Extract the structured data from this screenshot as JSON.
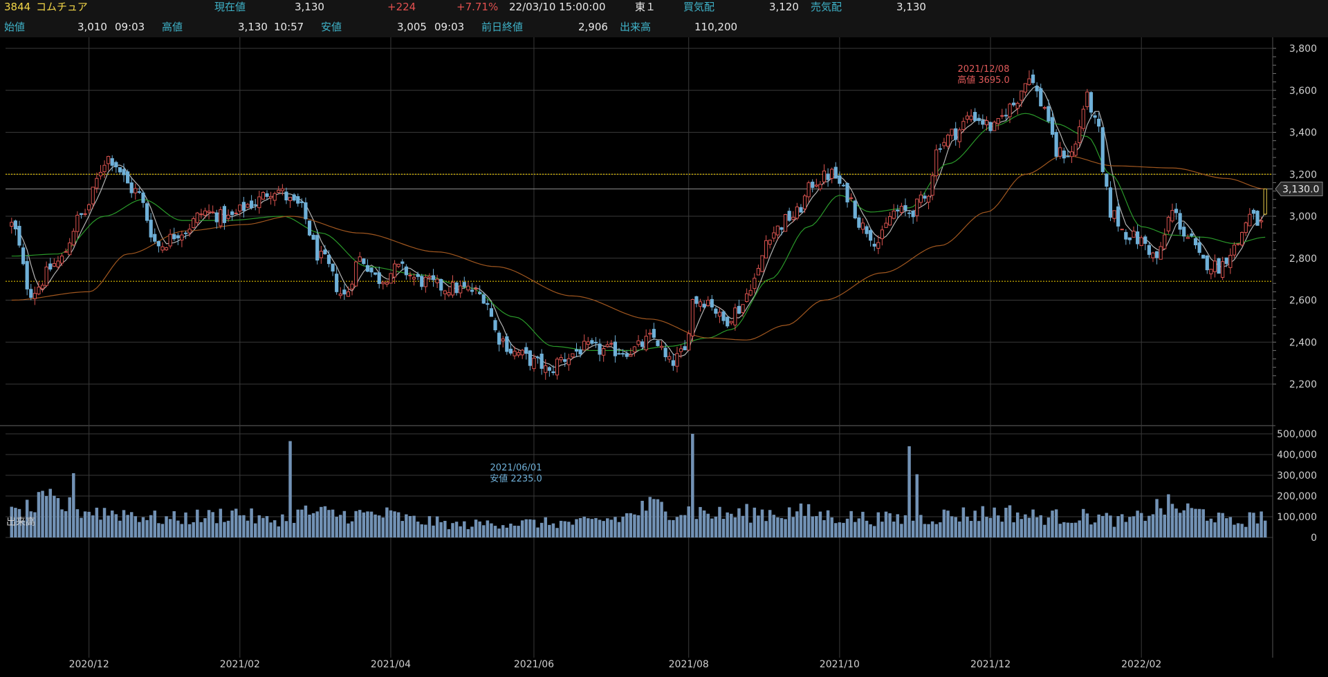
{
  "header": {
    "code": "3844",
    "name": "コムチュア",
    "current_label": "現在値",
    "current_value": "3,130",
    "change": "+224",
    "change_pct": "+7.71%",
    "datetime": "22/03/10 15:00:00",
    "market": "東１",
    "bid_label": "買気配",
    "bid_value": "3,120",
    "ask_label": "売気配",
    "ask_value": "3,130",
    "open_label": "始値",
    "open_value": "3,010",
    "open_time": "09:03",
    "high_label": "高値",
    "high_value": "3,130",
    "high_time": "10:57",
    "low_label": "安値",
    "low_value": "3,005",
    "low_time": "09:03",
    "prev_label": "前日終値",
    "prev_value": "2,906",
    "volume_label": "出来高",
    "volume_value": "110,200"
  },
  "chart_data": {
    "type": "candlestick",
    "price_axis": {
      "range": [
        2160,
        3860
      ],
      "ticks": [
        2200,
        2400,
        2600,
        2800,
        3000,
        3200,
        3400,
        3600,
        3800
      ],
      "tick_labels": [
        "2,200",
        "2,400",
        "2,600",
        "2,800",
        "3,000",
        "3,200",
        "3,400",
        "3,600",
        "3,800"
      ]
    },
    "volume_axis": {
      "label": "出来高",
      "range": [
        0,
        500000
      ],
      "ticks": [
        0,
        100000,
        200000,
        300000,
        400000,
        500000
      ],
      "tick_labels": [
        "0",
        "100,000",
        "200,000",
        "300,000",
        "400,000",
        "500,000"
      ]
    },
    "date_labels": [
      "2020/12",
      "2021/02",
      "2021/04",
      "2021/06",
      "2021/08",
      "2021/10",
      "2021/12",
      "2022/02"
    ],
    "date_label_bars": [
      20,
      59,
      98,
      135,
      175,
      214,
      253,
      292
    ],
    "bars": 325,
    "horizontal_lines": [
      3200,
      2690
    ],
    "current_price_tag": "3,130.0",
    "current_price": 3130,
    "annotations": {
      "high": {
        "date": "2021/12/08",
        "text": "高値 3695.0",
        "value": 3695,
        "bar": 263
      },
      "low": {
        "date": "2021/06/01",
        "text": "安値 2235.0",
        "value": 2235,
        "bar": 139
      }
    },
    "price_anchors": [
      [
        0,
        2960
      ],
      [
        5,
        2640
      ],
      [
        12,
        2780
      ],
      [
        18,
        3000
      ],
      [
        25,
        3280
      ],
      [
        32,
        3120
      ],
      [
        38,
        2860
      ],
      [
        44,
        2930
      ],
      [
        50,
        3020
      ],
      [
        56,
        2990
      ],
      [
        62,
        3060
      ],
      [
        68,
        3130
      ],
      [
        74,
        3050
      ],
      [
        80,
        2800
      ],
      [
        86,
        2620
      ],
      [
        90,
        2800
      ],
      [
        95,
        2700
      ],
      [
        100,
        2750
      ],
      [
        106,
        2690
      ],
      [
        112,
        2660
      ],
      [
        118,
        2650
      ],
      [
        122,
        2620
      ],
      [
        126,
        2420
      ],
      [
        130,
        2350
      ],
      [
        136,
        2300
      ],
      [
        139,
        2260
      ],
      [
        142,
        2320
      ],
      [
        148,
        2370
      ],
      [
        154,
        2360
      ],
      [
        160,
        2360
      ],
      [
        166,
        2420
      ],
      [
        170,
        2300
      ],
      [
        174,
        2350
      ],
      [
        176,
        2600
      ],
      [
        180,
        2600
      ],
      [
        184,
        2500
      ],
      [
        188,
        2560
      ],
      [
        192,
        2700
      ],
      [
        196,
        2920
      ],
      [
        202,
        3000
      ],
      [
        208,
        3170
      ],
      [
        212,
        3200
      ],
      [
        216,
        3100
      ],
      [
        220,
        2950
      ],
      [
        224,
        2880
      ],
      [
        228,
        3020
      ],
      [
        232,
        3020
      ],
      [
        236,
        3080
      ],
      [
        240,
        3350
      ],
      [
        244,
        3400
      ],
      [
        248,
        3480
      ],
      [
        254,
        3420
      ],
      [
        258,
        3520
      ],
      [
        263,
        3650
      ],
      [
        267,
        3520
      ],
      [
        270,
        3300
      ],
      [
        274,
        3300
      ],
      [
        278,
        3560
      ],
      [
        281,
        3400
      ],
      [
        282,
        3200
      ],
      [
        284,
        3020
      ],
      [
        288,
        2920
      ],
      [
        292,
        2880
      ],
      [
        296,
        2800
      ],
      [
        300,
        3020
      ],
      [
        304,
        2900
      ],
      [
        308,
        2780
      ],
      [
        312,
        2760
      ],
      [
        316,
        2850
      ],
      [
        320,
        3000
      ],
      [
        323,
        2960
      ],
      [
        324,
        3130
      ]
    ],
    "ma_short_anchors": [
      [
        0,
        2810
      ],
      [
        12,
        2820
      ],
      [
        24,
        3000
      ],
      [
        34,
        3080
      ],
      [
        44,
        2980
      ],
      [
        56,
        2980
      ],
      [
        70,
        3000
      ],
      [
        80,
        2920
      ],
      [
        92,
        2760
      ],
      [
        106,
        2720
      ],
      [
        118,
        2660
      ],
      [
        130,
        2520
      ],
      [
        140,
        2380
      ],
      [
        150,
        2360
      ],
      [
        160,
        2360
      ],
      [
        170,
        2380
      ],
      [
        180,
        2420
      ],
      [
        186,
        2460
      ],
      [
        196,
        2700
      ],
      [
        206,
        2950
      ],
      [
        214,
        3100
      ],
      [
        222,
        3020
      ],
      [
        232,
        3040
      ],
      [
        242,
        3250
      ],
      [
        254,
        3430
      ],
      [
        262,
        3490
      ],
      [
        270,
        3440
      ],
      [
        278,
        3380
      ],
      [
        284,
        3200
      ],
      [
        292,
        2950
      ],
      [
        300,
        2910
      ],
      [
        308,
        2900
      ],
      [
        316,
        2870
      ],
      [
        324,
        2900
      ]
    ],
    "ma_long_anchors": [
      [
        0,
        2600
      ],
      [
        20,
        2640
      ],
      [
        30,
        2820
      ],
      [
        45,
        2930
      ],
      [
        60,
        2960
      ],
      [
        72,
        3000
      ],
      [
        90,
        2920
      ],
      [
        110,
        2830
      ],
      [
        125,
        2760
      ],
      [
        145,
        2620
      ],
      [
        165,
        2510
      ],
      [
        180,
        2420
      ],
      [
        190,
        2410
      ],
      [
        200,
        2480
      ],
      [
        210,
        2600
      ],
      [
        225,
        2730
      ],
      [
        240,
        2860
      ],
      [
        252,
        3020
      ],
      [
        262,
        3200
      ],
      [
        272,
        3290
      ],
      [
        285,
        3240
      ],
      [
        300,
        3230
      ],
      [
        314,
        3180
      ],
      [
        324,
        3130
      ]
    ],
    "volume_anchors": [
      [
        0,
        110000
      ],
      [
        10,
        170000
      ],
      [
        18,
        130000
      ],
      [
        28,
        120000
      ],
      [
        40,
        90000
      ],
      [
        50,
        100000
      ],
      [
        58,
        120000
      ],
      [
        66,
        80000
      ],
      [
        76,
        120000
      ],
      [
        86,
        110000
      ],
      [
        96,
        110000
      ],
      [
        106,
        80000
      ],
      [
        116,
        60000
      ],
      [
        126,
        70000
      ],
      [
        136,
        70000
      ],
      [
        146,
        70000
      ],
      [
        156,
        90000
      ],
      [
        166,
        150000
      ],
      [
        174,
        130000
      ],
      [
        184,
        110000
      ],
      [
        194,
        120000
      ],
      [
        204,
        120000
      ],
      [
        214,
        100000
      ],
      [
        226,
        90000
      ],
      [
        234,
        90000
      ],
      [
        244,
        110000
      ],
      [
        256,
        120000
      ],
      [
        266,
        100000
      ],
      [
        278,
        100000
      ],
      [
        288,
        80000
      ],
      [
        298,
        150000
      ],
      [
        308,
        120000
      ],
      [
        316,
        70000
      ],
      [
        324,
        110000
      ]
    ],
    "volume_spikes": [
      [
        16,
        310000
      ],
      [
        72,
        465000
      ],
      [
        176,
        500000
      ],
      [
        232,
        440000
      ],
      [
        234,
        305000
      ]
    ],
    "colors": {
      "up": "#d9534f",
      "down": "#6fb0d8",
      "ma_short": "#2a9a2a",
      "ma_long": "#a1571f",
      "ma_fast": "#b5b5b5",
      "hline": "#e0c000",
      "volume": "#7292b5",
      "grid": "#3a3a3a",
      "annotation_high": "#e05a5a",
      "annotation_low": "#6fb0d8"
    }
  }
}
